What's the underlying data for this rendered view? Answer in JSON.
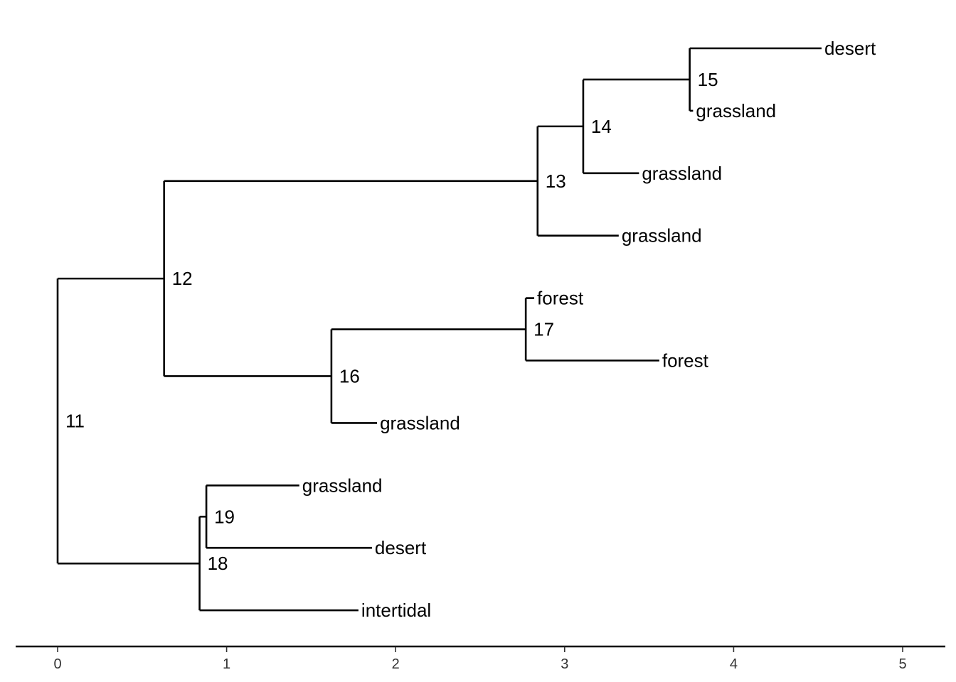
{
  "chart_data": {
    "type": "dendrogram",
    "title": "",
    "xlabel": "",
    "ylabel": "",
    "xlim": [
      -0.25,
      5.25
    ],
    "x_ticks": [
      0,
      1,
      2,
      3,
      4,
      5
    ],
    "grid": false,
    "legend": "none",
    "nodes": [
      {
        "id": 11,
        "label": "11",
        "depth": 0.0,
        "children": [
          12,
          18
        ]
      },
      {
        "id": 12,
        "label": "12",
        "depth": 0.63,
        "children": [
          13,
          16
        ]
      },
      {
        "id": 13,
        "label": "13",
        "depth": 2.84,
        "children": [
          14,
          "t5"
        ]
      },
      {
        "id": 14,
        "label": "14",
        "depth": 3.11,
        "children": [
          15,
          "t4"
        ]
      },
      {
        "id": 15,
        "label": "15",
        "depth": 3.74,
        "children": [
          "t1",
          "t2"
        ]
      },
      {
        "id": 16,
        "label": "16",
        "depth": 1.62,
        "children": [
          17,
          "t8"
        ]
      },
      {
        "id": 17,
        "label": "17",
        "depth": 2.77,
        "children": [
          "t6",
          "t7"
        ]
      },
      {
        "id": 18,
        "label": "18",
        "depth": 0.84,
        "children": [
          19,
          "t11"
        ]
      },
      {
        "id": 19,
        "label": "19",
        "depth": 0.88,
        "children": [
          "t9",
          "t10"
        ]
      }
    ],
    "tips": [
      {
        "id": "t1",
        "label": "desert",
        "depth": 4.52
      },
      {
        "id": "t2",
        "label": "grassland",
        "depth": 3.76
      },
      {
        "id": "t4",
        "label": "grassland",
        "depth": 3.44
      },
      {
        "id": "t5",
        "label": "grassland",
        "depth": 3.32
      },
      {
        "id": "t6",
        "label": "forest",
        "depth": 2.82
      },
      {
        "id": "t7",
        "label": "forest",
        "depth": 3.56
      },
      {
        "id": "t8",
        "label": "grassland",
        "depth": 1.89
      },
      {
        "id": "t9",
        "label": "grassland",
        "depth": 1.43
      },
      {
        "id": "t10",
        "label": "desert",
        "depth": 1.86
      },
      {
        "id": "t11",
        "label": "intertidal",
        "depth": 1.78
      }
    ]
  }
}
